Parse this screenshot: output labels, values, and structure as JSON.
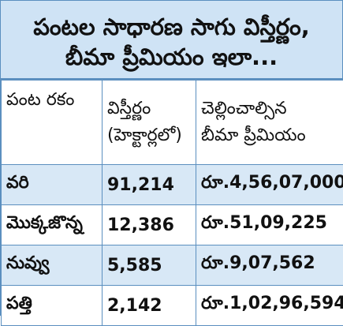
{
  "title": {
    "line1": "పంటల సాధారణ సాగు విస్తీర్ణం,",
    "line2": "బీమా ప్రీమియం ఇలా..."
  },
  "table": {
    "headers": {
      "crop": "పంట రకం",
      "area_line1": "విస్తీర్ణం",
      "area_line2": "(హెక్టార్లలో)",
      "premium_line1": "చెల్లించాల్సిన",
      "premium_line2": "బీమా ప్రీమియం"
    },
    "rows": [
      {
        "crop": "వరి",
        "area": "91,214",
        "premium": "రూ.4,56,07,000"
      },
      {
        "crop": "మొక్కజొన్న",
        "area": "12,386",
        "premium": "రూ.51,09,225"
      },
      {
        "crop": "నువ్వు",
        "area": "5,585",
        "premium": "రూ.9,07,562"
      },
      {
        "crop": "పత్తి",
        "area": "2,142",
        "premium": "రూ.1,02,96,594"
      }
    ]
  },
  "colors": {
    "title_bg": "#cfe3f5",
    "row_alt_bg": "#d8e8f6",
    "border": "#5b8fbf"
  }
}
